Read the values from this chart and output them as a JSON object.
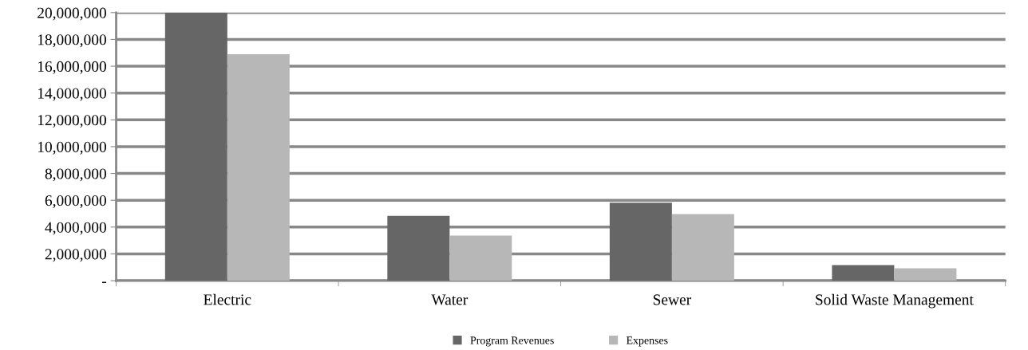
{
  "chart_data": {
    "type": "bar",
    "categories": [
      "Electric",
      "Water",
      "Sewer",
      "Solid Waste Management"
    ],
    "series": [
      {
        "name": "Program Revenues",
        "color": "#666666",
        "values": [
          20000000,
          4830000,
          5820000,
          1170000
        ]
      },
      {
        "name": "Expenses",
        "color": "#b7b7b7",
        "values": [
          16900000,
          3360000,
          4970000,
          930000
        ]
      }
    ],
    "ylim": [
      0,
      20000000
    ],
    "yticks": [
      {
        "value": 0,
        "label": "-"
      },
      {
        "value": 2000000,
        "label": "2,000,000"
      },
      {
        "value": 4000000,
        "label": "4,000,000"
      },
      {
        "value": 6000000,
        "label": "6,000,000"
      },
      {
        "value": 8000000,
        "label": "8,000,000"
      },
      {
        "value": 10000000,
        "label": "10,000,000"
      },
      {
        "value": 12000000,
        "label": "12,000,000"
      },
      {
        "value": 14000000,
        "label": "14,000,000"
      },
      {
        "value": 16000000,
        "label": "16,000,000"
      },
      {
        "value": 18000000,
        "label": "18,000,000"
      },
      {
        "value": 20000000,
        "label": "20,000,000"
      }
    ],
    "grid": "y",
    "legend": "bottom"
  }
}
